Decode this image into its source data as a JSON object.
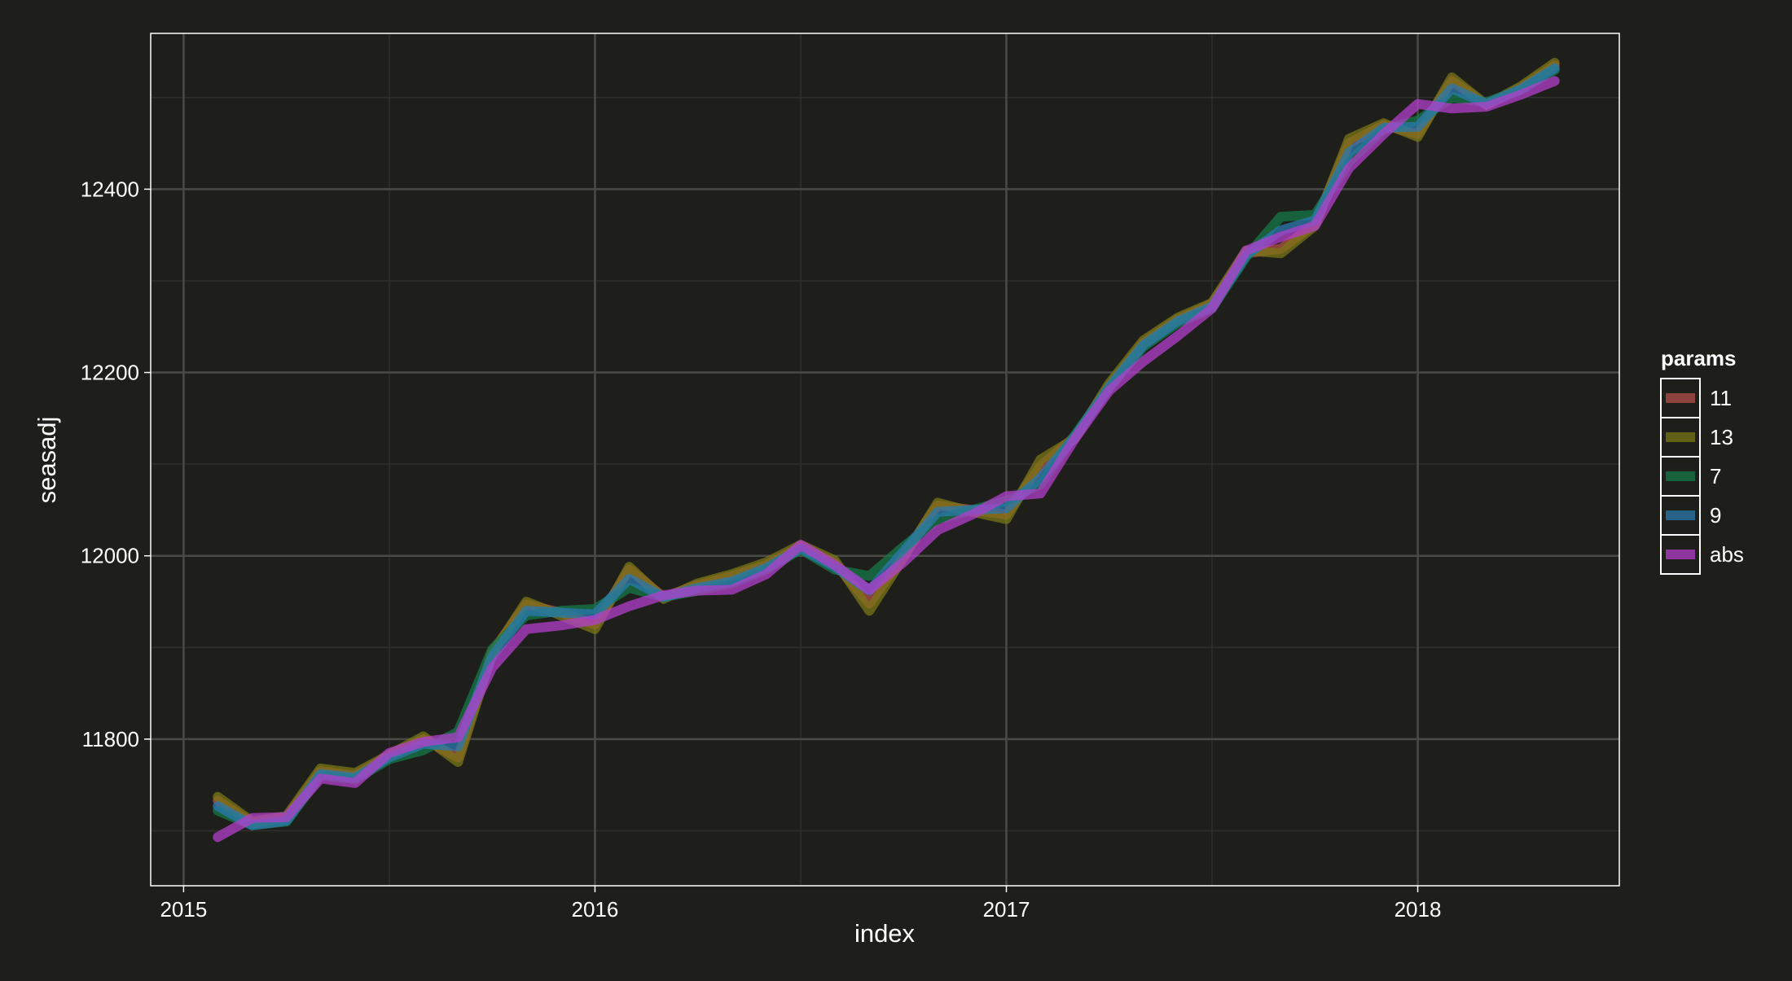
{
  "chart_data": {
    "type": "line",
    "xlabel": "index",
    "ylabel": "seasadj",
    "x_ticks": [
      "2015",
      "2016",
      "2017",
      "2018"
    ],
    "y_ticks": [
      11800,
      12000,
      12200,
      12400
    ],
    "xlim": [
      2014.92,
      2018.49
    ],
    "ylim": [
      11640,
      12570
    ],
    "grid": true,
    "legend": {
      "title": "params",
      "position": "right"
    },
    "x": [
      2015.083,
      2015.167,
      2015.25,
      2015.333,
      2015.417,
      2015.5,
      2015.583,
      2015.667,
      2015.75,
      2015.833,
      2015.917,
      2016.0,
      2016.083,
      2016.167,
      2016.25,
      2016.333,
      2016.417,
      2016.5,
      2016.583,
      2016.667,
      2016.75,
      2016.833,
      2016.917,
      2017.0,
      2017.083,
      2017.167,
      2017.25,
      2017.333,
      2017.417,
      2017.5,
      2017.583,
      2017.667,
      2017.75,
      2017.833,
      2017.917,
      2018.0,
      2018.083,
      2018.167,
      2018.25,
      2018.333
    ],
    "series": [
      {
        "name": "11",
        "color": "#b34f4a",
        "values": [
          11733,
          11708,
          11714,
          11765,
          11760,
          11782,
          11800,
          11780,
          11895,
          11947,
          11938,
          11925,
          11985,
          11955,
          11968,
          11978,
          11990,
          12010,
          11992,
          11948,
          12000,
          12055,
          12050,
          12045,
          12098,
          12130,
          12185,
          12232,
          12258,
          12275,
          12330,
          12335,
          12362,
          12450,
          12470,
          12460,
          12518,
          12492,
          12510,
          12535
        ]
      },
      {
        "name": "13",
        "color": "#7a7716",
        "values": [
          11737,
          11710,
          11716,
          11768,
          11763,
          11783,
          11803,
          11775,
          11893,
          11950,
          11935,
          11920,
          11988,
          11953,
          11970,
          11980,
          11993,
          12012,
          11995,
          11940,
          11998,
          12058,
          12048,
          12040,
          12105,
          12128,
          12188,
          12235,
          12260,
          12276,
          12333,
          12330,
          12360,
          12455,
          12472,
          12457,
          12522,
          12492,
          12512,
          12538
        ]
      },
      {
        "name": "7",
        "color": "#167a4a",
        "values": [
          11722,
          11706,
          11710,
          11760,
          11756,
          11778,
          11788,
          11808,
          11898,
          11935,
          11940,
          11942,
          11965,
          11955,
          11962,
          11970,
          11985,
          12007,
          11985,
          11978,
          12010,
          12040,
          12050,
          12060,
          12078,
          12132,
          12183,
          12228,
          12254,
          12270,
          12326,
          12370,
          12372,
          12430,
          12465,
          12475,
          12500,
          12495,
          12508,
          12530
        ]
      },
      {
        "name": "9",
        "color": "#2b7aaf",
        "values": [
          11727,
          11706,
          11711,
          11762,
          11758,
          11780,
          11795,
          11792,
          11890,
          11940,
          11938,
          11936,
          11975,
          11955,
          11965,
          11972,
          11987,
          12008,
          11988,
          11962,
          12005,
          12048,
          12050,
          12052,
          12085,
          12130,
          12184,
          12230,
          12256,
          12272,
          12328,
          12355,
          12366,
          12440,
          12467,
          12468,
          12510,
          12493,
          12509,
          12532
        ]
      },
      {
        "name": "abs",
        "color": "#b33fcc",
        "values": [
          11693,
          11714,
          11715,
          11757,
          11752,
          11785,
          11797,
          11802,
          11878,
          11920,
          11924,
          11930,
          11945,
          11957,
          11962,
          11963,
          11980,
          12012,
          11990,
          11963,
          11993,
          12028,
          12045,
          12065,
          12068,
          12128,
          12180,
          12212,
          12240,
          12270,
          12333,
          12348,
          12360,
          12423,
          12460,
          12493,
          12488,
          12490,
          12503,
          12518
        ]
      }
    ]
  }
}
